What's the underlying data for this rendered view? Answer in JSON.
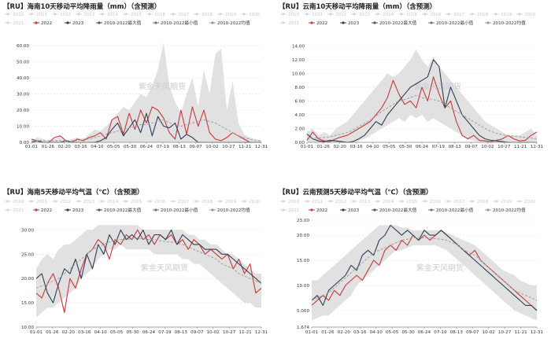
{
  "chart_data": [
    {
      "type": "line",
      "title": "【RU】海南10天移动平均降雨量（mm）（含预测）",
      "watermark": "紫金天风期货",
      "legend_row1": [
        "2010",
        "2011",
        "2012",
        "2013",
        "2014",
        "2015",
        "2016",
        "2017",
        "2018",
        "2019",
        "2020"
      ],
      "legend_row2": [
        "2021",
        "2022",
        "2023",
        "2010-2022最大值",
        "2010-2022最小值",
        "2010-2022均值"
      ],
      "x_ticks": [
        "01-01",
        "01-26",
        "02-20",
        "03-16",
        "04-10",
        "05-05",
        "05-30",
        "06-24",
        "07-19",
        "08-13",
        "09-07",
        "10-02",
        "10-27",
        "11-21",
        "12-31"
      ],
      "y_ticks": [
        "0.00",
        "10.00",
        "20.00",
        "30.00",
        "40.00",
        "50.00",
        "60.00"
      ],
      "ylim": [
        0,
        62
      ],
      "band_max": [
        1,
        3,
        2,
        1,
        2,
        3,
        1,
        2,
        3,
        2,
        5,
        8,
        7,
        10,
        14,
        18,
        22,
        20,
        25,
        30,
        28,
        35,
        45,
        62,
        35,
        25,
        18,
        30,
        40,
        22,
        45,
        30,
        55,
        58,
        20,
        38,
        12,
        5,
        3,
        2,
        1
      ],
      "band_min": [
        0,
        0,
        0,
        0,
        0,
        0,
        0,
        0,
        0,
        0,
        0,
        0,
        0,
        0,
        0,
        0,
        0,
        0,
        0,
        0,
        0,
        0,
        0,
        0,
        0,
        0,
        0,
        0,
        0,
        0,
        0,
        0,
        0,
        0,
        0,
        0,
        0,
        0,
        0,
        0,
        0
      ],
      "series": [
        {
          "name": "2022",
          "color": "#c8373b",
          "values": [
            2,
            1,
            0,
            0,
            3,
            4,
            1,
            0,
            2,
            1,
            3,
            4,
            6,
            2,
            14,
            16,
            5,
            18,
            8,
            20,
            12,
            22,
            20,
            15,
            6,
            2,
            20,
            5,
            22,
            10,
            20,
            6,
            2,
            1,
            3,
            6,
            4,
            2,
            0,
            0,
            0
          ]
        },
        {
          "name": "2023",
          "color": "#2c3e56",
          "values": [
            0,
            1,
            0,
            0,
            0,
            0,
            1,
            0,
            0,
            0,
            0,
            0,
            1,
            3,
            8,
            12,
            4,
            9,
            14,
            6,
            18,
            4,
            16,
            10,
            9,
            12,
            2,
            5,
            3,
            0,
            0,
            0,
            0,
            0,
            0,
            0,
            0,
            0,
            0,
            0,
            0
          ]
        },
        {
          "name": "2010-2022均值",
          "color": "#999999",
          "values": [
            1,
            1,
            1,
            1,
            1,
            1,
            1,
            1,
            1,
            2,
            2,
            3,
            4,
            5,
            6,
            7,
            8,
            9,
            10,
            11,
            11,
            12,
            13,
            14,
            12,
            11,
            10,
            11,
            12,
            13,
            14,
            13,
            12,
            10,
            8,
            6,
            4,
            3,
            2,
            1,
            1
          ]
        }
      ]
    },
    {
      "type": "line",
      "title": "【RU】云南10天移动平均降雨量（mm）（含预测）",
      "watermark": "紫金天风期货",
      "legend_row1": [
        "2010",
        "2011",
        "2012",
        "2013",
        "2014",
        "2015",
        "2016",
        "2017",
        "2018",
        "2019",
        "2020"
      ],
      "legend_row2": [
        "2021",
        "2022",
        "2023",
        "2010-2022最大值",
        "2010-2022最小值",
        "2010-2022均值"
      ],
      "x_ticks": [
        "01-01",
        "01-26",
        "02-20",
        "03-16",
        "04-10",
        "05-05",
        "05-30",
        "06-24",
        "07-19",
        "08-13",
        "09-07",
        "10-02",
        "10-27",
        "11-21",
        "12-31"
      ],
      "y_ticks": [
        "0.00",
        "2.00",
        "4.00",
        "6.00",
        "8.00",
        "10.00",
        "12.00",
        "14.00"
      ],
      "ylim": [
        0,
        14.5
      ],
      "band_max": [
        1.5,
        2,
        1,
        1.5,
        1,
        2,
        2.5,
        3,
        4,
        5,
        6,
        7,
        8,
        9,
        10,
        9.5,
        10,
        11,
        12,
        13.5,
        12,
        11,
        12.5,
        11,
        10,
        9,
        8,
        7,
        6,
        5,
        4,
        3,
        2.5,
        2,
        1.5,
        1,
        1,
        1,
        1.5,
        2,
        1
      ],
      "band_min": [
        0,
        0,
        0,
        0,
        0,
        0,
        0,
        0,
        0,
        0.2,
        0.5,
        1,
        1.5,
        2,
        2.5,
        3,
        3.5,
        3,
        4,
        3.5,
        4,
        3,
        3.5,
        3,
        2.5,
        2,
        1.5,
        1,
        0.5,
        0.2,
        0,
        0,
        0,
        0,
        0,
        0,
        0,
        0,
        0,
        0,
        0
      ],
      "series": [
        {
          "name": "2022",
          "color": "#c8373b",
          "values": [
            0.3,
            1.5,
            0.5,
            0.2,
            0.1,
            0.5,
            0.8,
            1,
            1.5,
            2,
            2.5,
            3,
            4,
            5,
            6.5,
            9,
            7,
            5.5,
            6,
            5,
            8,
            6,
            9.5,
            7,
            5,
            6,
            3,
            1,
            0.5,
            1,
            0.3,
            0.2,
            0.1,
            0.3,
            0.5,
            1,
            0.5,
            0.2,
            0.3,
            1,
            1.5
          ]
        },
        {
          "name": "2023",
          "color": "#2c3e56",
          "values": [
            1.2,
            0.5,
            0.2,
            0.1,
            0.3,
            0.2,
            0.1,
            0,
            0.1,
            0.5,
            1,
            2,
            3,
            2.5,
            4,
            5,
            6,
            7,
            8,
            8.5,
            9,
            9.5,
            12,
            11,
            5,
            8,
            6,
            4,
            3,
            2,
            1,
            0.5,
            0.3,
            0.2,
            0.1,
            0,
            0,
            0,
            0,
            0,
            0
          ]
        },
        {
          "name": "2010-2022均值",
          "color": "#999999",
          "values": [
            0.5,
            0.6,
            0.6,
            0.7,
            0.8,
            1,
            1.2,
            1.4,
            1.8,
            2.3,
            2.8,
            3.2,
            3.8,
            4.5,
            5,
            5.5,
            6,
            6.2,
            6.5,
            6.8,
            6.5,
            6.3,
            6.2,
            6,
            5.5,
            5,
            4.5,
            4,
            3.5,
            3,
            2.5,
            2,
            1.6,
            1.3,
            1.1,
            1,
            0.9,
            0.8,
            0.7,
            0.6,
            0.5
          ]
        }
      ]
    },
    {
      "type": "line",
      "title": "【RU】海南5天移动平均气温（℃）（含预测）",
      "watermark": "紫金天风期货",
      "legend_row1": [
        "2010",
        "2011",
        "2012",
        "2013",
        "2014",
        "2015",
        "2016",
        "2017",
        "2018",
        "2019",
        "2020"
      ],
      "legend_row2": [
        "2021",
        "2022",
        "2023",
        "2010-2022最大值",
        "2010-2022最小值",
        "2010-2022均值"
      ],
      "x_ticks": [
        "01-01",
        "01-26",
        "02-20",
        "03-16",
        "04-10",
        "05-05",
        "05-30",
        "06-24",
        "07-19",
        "08-13",
        "09-07",
        "10-02",
        "10-27",
        "11-21",
        "12-31"
      ],
      "y_ticks": [
        "10.00",
        "15.00",
        "20.00",
        "25.00",
        "30.00"
      ],
      "ylim": [
        10,
        32
      ],
      "band_max": [
        22,
        24,
        25,
        24,
        26,
        27,
        27,
        28,
        29,
        30,
        30,
        31,
        31,
        31,
        31,
        31,
        31,
        31,
        31,
        30,
        30,
        30,
        30,
        30,
        30,
        30,
        30,
        29,
        29,
        28,
        28,
        27,
        27,
        26,
        25,
        25,
        24,
        23,
        22,
        21,
        21
      ],
      "band_min": [
        12,
        13,
        14,
        14,
        15,
        16,
        17,
        18,
        20,
        21,
        22,
        24,
        25,
        26,
        26,
        27,
        26,
        26,
        26,
        26,
        26,
        25,
        25,
        25,
        25,
        25,
        24,
        24,
        23,
        23,
        22,
        21,
        20,
        19,
        18,
        17,
        16,
        15,
        15,
        14,
        14
      ],
      "series": [
        {
          "name": "2022",
          "color": "#c8373b",
          "values": [
            17,
            16,
            19,
            21,
            18,
            13,
            20,
            18,
            22,
            25,
            26,
            28,
            27,
            24,
            28,
            27,
            29,
            28,
            30,
            28,
            29,
            27,
            29,
            28,
            29,
            27,
            28,
            26,
            28,
            27,
            25,
            26,
            25,
            24,
            25,
            22,
            24,
            21,
            23,
            17,
            18
          ]
        },
        {
          "name": "2023",
          "color": "#2c3e56",
          "values": [
            20,
            21,
            17,
            15,
            19,
            22,
            21,
            24,
            20,
            25,
            22,
            27,
            25,
            29,
            27,
            30,
            28,
            29,
            28,
            30,
            27,
            29,
            29,
            28,
            30,
            27,
            29,
            28,
            27,
            27,
            26,
            26,
            26,
            25,
            25,
            24,
            23,
            22,
            21,
            20,
            19
          ]
        },
        {
          "name": "2010-2022均值",
          "color": "#999999",
          "values": [
            18,
            18.5,
            19,
            19.5,
            20,
            21,
            22,
            23,
            24,
            25,
            26,
            26.5,
            27,
            27.5,
            27.8,
            28,
            28,
            28.2,
            28.3,
            28.2,
            28,
            28,
            27.8,
            27.6,
            27.5,
            27.3,
            27,
            26.5,
            26,
            25.5,
            25,
            24.5,
            24,
            23,
            22.5,
            22,
            21,
            20.5,
            20,
            19.5,
            19
          ]
        }
      ]
    },
    {
      "type": "line",
      "title": "【RU】云南预测5天移动平均气温（℃）（含预测）",
      "watermark": "紫金天风期货",
      "legend_row1": [
        "2010",
        "2011",
        "2012",
        "2013",
        "2014",
        "2015",
        "2016",
        "2017",
        "2018",
        "2019",
        "2020"
      ],
      "legend_row2": [
        "2021",
        "2022",
        "2023",
        "2010-2022最大值",
        "2010-2022最小值",
        "2010-2022均值"
      ],
      "x_ticks": [
        "01-01",
        "01-26",
        "02-20",
        "03-16",
        "04-10",
        "05-05",
        "05-30",
        "06-24",
        "07-19",
        "08-13",
        "09-07",
        "10-02",
        "10-27",
        "11-21",
        "12-31"
      ],
      "y_ticks": [
        "1.674",
        "5.000",
        "10.00",
        "15.00",
        "20.00",
        "23.00"
      ],
      "ylim": [
        1.674,
        23
      ],
      "band_max": [
        11,
        11,
        12,
        13,
        14,
        15,
        16,
        17,
        18,
        19,
        20,
        21,
        22,
        22,
        22,
        22,
        21.5,
        21.5,
        21,
        21,
        21,
        21,
        21,
        21,
        20.5,
        20,
        19.5,
        19,
        18.5,
        18,
        17,
        16,
        15,
        14,
        13,
        12.5,
        12,
        11,
        10.5,
        10,
        10
      ],
      "band_min": [
        3,
        3.5,
        4,
        4,
        5,
        6,
        7,
        8,
        10,
        11,
        12,
        13,
        14,
        15,
        16,
        17,
        17,
        17.5,
        18,
        18,
        18,
        18,
        18,
        17.5,
        17,
        16,
        15,
        14,
        13,
        12,
        11,
        10,
        9,
        8,
        7,
        6,
        5,
        4.5,
        4,
        3.5,
        3
      ],
      "series": [
        {
          "name": "2022",
          "color": "#c8373b",
          "values": [
            6,
            7,
            8,
            7,
            9,
            8,
            10,
            11,
            12,
            11,
            13,
            15,
            14,
            17,
            18,
            17,
            19,
            18,
            20,
            19,
            20,
            19,
            20,
            21,
            20,
            19,
            18,
            17,
            16,
            17,
            15,
            14,
            13,
            12,
            11,
            10,
            9,
            8,
            7,
            6,
            5
          ]
        },
        {
          "name": "2023",
          "color": "#2c3e56",
          "values": [
            7,
            8,
            6,
            9,
            10,
            11,
            12,
            14,
            13,
            16,
            17,
            16,
            19,
            20,
            22,
            21,
            20,
            21,
            20,
            19,
            21,
            20,
            20,
            21,
            20,
            19,
            18,
            17,
            16,
            15,
            14,
            13,
            12,
            11,
            10,
            9,
            8,
            7,
            6,
            6,
            5
          ]
        },
        {
          "name": "2010-2022均值",
          "color": "#999999",
          "values": [
            7,
            7.5,
            8,
            8.5,
            9.5,
            10.5,
            11.5,
            12.5,
            13.5,
            14.5,
            15.5,
            16.5,
            17,
            17.5,
            18,
            18.5,
            19,
            19.2,
            19.5,
            19.5,
            19.5,
            19.5,
            19.3,
            19.2,
            19,
            18.5,
            18,
            17,
            16.5,
            16,
            15,
            14,
            13,
            12,
            11,
            10,
            9,
            8.5,
            8,
            7.5,
            7
          ]
        }
      ]
    }
  ]
}
